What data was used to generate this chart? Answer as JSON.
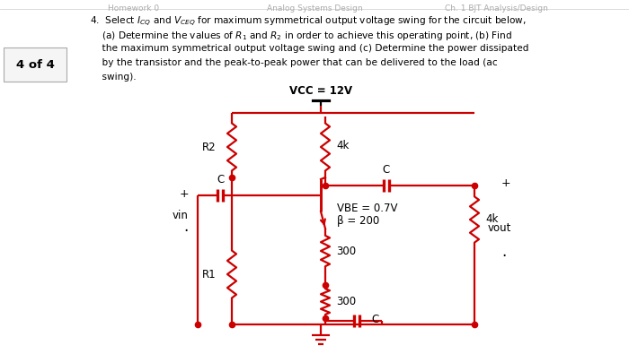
{
  "sidebar": "4 of 4",
  "vcc_label": "VCC = 12V",
  "r2_label": "R2",
  "r_4k_top_label": "4k",
  "c_top_label": "C",
  "c_left_label": "C",
  "vbe_label": "VBE = 0.7V",
  "beta_label": "β = 200",
  "r_4k_right_label": "4k",
  "vout_label": "vout",
  "vin_label": "vin",
  "r1_label": "R1",
  "r300_mid_label": "300",
  "r300_bot_label": "300",
  "c_bot_label": "C",
  "plus_left": "+",
  "plus_right": "+",
  "dot_label": "·",
  "bg_color": "#ffffff",
  "circuit_color": "#cc0000",
  "text_color": "#000000",
  "gray_text": "#999999",
  "line_width": 1.6,
  "header_line1": "Homework 0",
  "header_line2": "Analog Systems Design",
  "header_line3": "Ch. 1 BJT Analysis/Design",
  "q_line1": "4.  Select $I_{CQ}$ and $V_{CEQ}$ for maximum symmetrical output voltage swing for the circuit below,",
  "q_line2": "    (a) Determine the values of $R_1$ and $R_2$ in order to achieve this operating point, (b) Find",
  "q_line3": "    the maximum symmetrical output voltage swing and (c) Determine the power dissipated",
  "q_line4": "    by the transistor and the peak-to-peak power that can be delivered to the load (ac",
  "q_line5": "    swing).",
  "xL": 258,
  "xM": 357,
  "xR": 528,
  "xVCC": 357,
  "yPowerBar": 112,
  "yTopRail": 126,
  "yR2t": 130,
  "yR2b": 198,
  "y4kt": 130,
  "y4kb": 198,
  "yCapOut": 207,
  "yCapLeft": 218,
  "yBase": 218,
  "yEmit": 255,
  "y300mt": 258,
  "y300mb": 302,
  "yR1t": 272,
  "yR1b": 340,
  "y300bt": 318,
  "y300bb": 355,
  "yBotRail": 362,
  "yGndTop": 368,
  "xVin": 220,
  "xCapIn": 245,
  "xCapOut": 430,
  "x4kR": 528,
  "y4kRt": 212,
  "y4kRb": 278
}
